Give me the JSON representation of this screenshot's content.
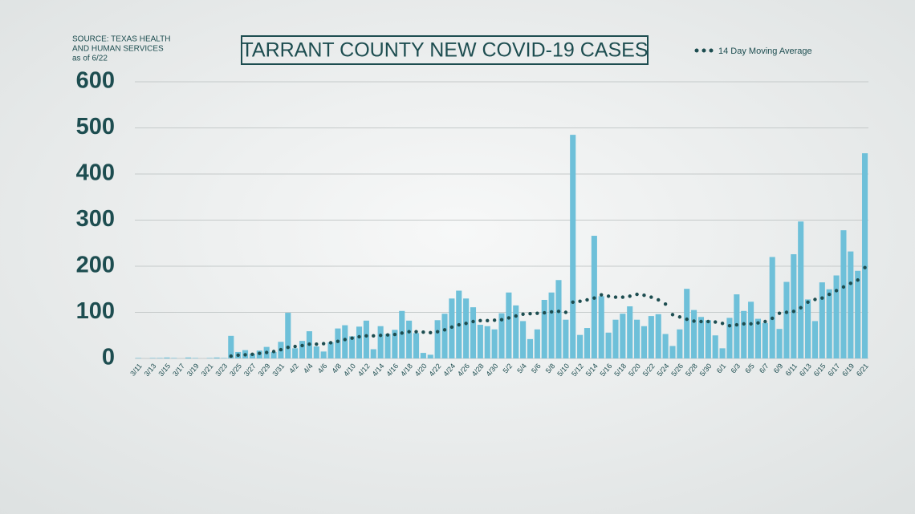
{
  "chart_data": {
    "type": "bar",
    "title": "TARRANT COUNTY NEW COVID-19 CASES",
    "source": [
      "SOURCE: TEXAS HEALTH",
      "AND HUMAN SERVICES",
      "as of 6/22"
    ],
    "categories": [
      "3/11",
      null,
      "3/13",
      null,
      "3/15",
      null,
      "3/17",
      null,
      "3/19",
      null,
      "3/21",
      null,
      "3/23",
      null,
      "3/25",
      null,
      "3/27",
      null,
      "3/29",
      null,
      "3/31",
      null,
      "4/2",
      null,
      "4/4",
      null,
      "4/6",
      null,
      "4/8",
      null,
      "4/10",
      null,
      "4/12",
      null,
      "4/14",
      null,
      "4/16",
      null,
      "4/18",
      null,
      "4/20",
      null,
      "4/22",
      null,
      "4/24",
      null,
      "4/26",
      null,
      "4/28",
      null,
      "4/30",
      null,
      "5/2",
      null,
      "5/4",
      null,
      "5/6",
      null,
      "5/8",
      null,
      "5/10",
      null,
      "5/12",
      null,
      "5/14",
      null,
      "5/16",
      null,
      "5/18",
      null,
      "5/20",
      null,
      "5/22",
      null,
      "5/24",
      null,
      "5/26",
      null,
      "5/28",
      null,
      "5/30",
      null,
      "6/1",
      null,
      "6/3",
      null,
      "6/5",
      null,
      "6/7",
      null,
      "6/9",
      null,
      "6/11",
      null,
      "6/13",
      null,
      "6/15",
      null,
      "6/17",
      null,
      "6/19",
      null,
      "6/21"
    ],
    "series": [
      {
        "type": "bar",
        "color": "#6ec0d9",
        "values": [
          1,
          0,
          1,
          1,
          2,
          1,
          0,
          2,
          1,
          0,
          1,
          2,
          1,
          49,
          14,
          18,
          10,
          17,
          25,
          14,
          36,
          99,
          22,
          38,
          59,
          26,
          15,
          35,
          65,
          72,
          48,
          69,
          82,
          20,
          70,
          53,
          62,
          103,
          82,
          55,
          12,
          8,
          83,
          97,
          130,
          147,
          130,
          111,
          73,
          70,
          63,
          98,
          143,
          115,
          81,
          42,
          63,
          127,
          143,
          170,
          84,
          485,
          51,
          66,
          266,
          135,
          56,
          84,
          97,
          113,
          84,
          70,
          92,
          96,
          53,
          27,
          63,
          151,
          105,
          90,
          83,
          50,
          22,
          88,
          139,
          103,
          123,
          86,
          77,
          220,
          64,
          166,
          226,
          297,
          128,
          81,
          165,
          150,
          180,
          278,
          232,
          190,
          445
        ]
      },
      {
        "type": "line",
        "name": "14 Day Moving Average",
        "color": "#1d4d50",
        "values": [
          null,
          null,
          null,
          null,
          null,
          null,
          null,
          null,
          null,
          null,
          null,
          null,
          null,
          5,
          7,
          8,
          9,
          11,
          13,
          15,
          19,
          24,
          26,
          28,
          31,
          31,
          32,
          34,
          37,
          41,
          44,
          47,
          49,
          49,
          50,
          51,
          52,
          55,
          58,
          58,
          57,
          56,
          58,
          62,
          68,
          73,
          76,
          80,
          82,
          82,
          83,
          84,
          88,
          92,
          96,
          97,
          98,
          99,
          101,
          102,
          100,
          122,
          124,
          127,
          131,
          138,
          135,
          133,
          133,
          135,
          139,
          137,
          133,
          127,
          118,
          95,
          90,
          85,
          81,
          80,
          80,
          79,
          76,
          71,
          73,
          75,
          75,
          77,
          80,
          87,
          98,
          100,
          102,
          110,
          122,
          128,
          131,
          139,
          147,
          155,
          163,
          170,
          197
        ]
      }
    ],
    "ylim": [
      0,
      600
    ],
    "yticks": [
      0,
      100,
      200,
      300,
      400,
      500,
      600
    ],
    "grid": true,
    "legend": "top-right"
  }
}
